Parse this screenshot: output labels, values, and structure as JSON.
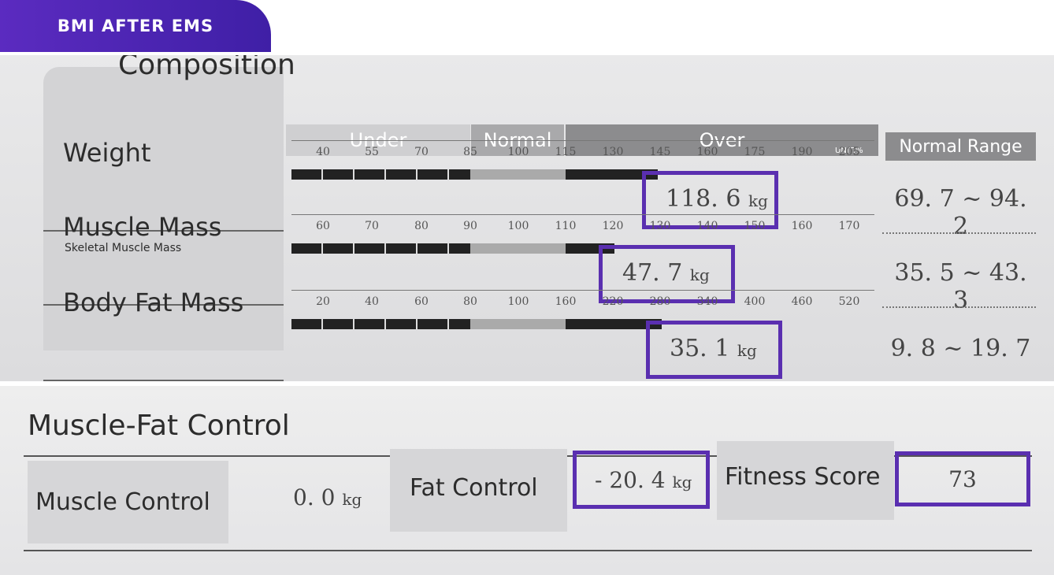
{
  "header": {
    "tab": "BMI AFTER EMS"
  },
  "body_composition": {
    "title": "Composition",
    "columns": {
      "under": "Under",
      "normal": "Normal",
      "over": "Over",
      "unit": "UNIT:%",
      "range": "Normal Range"
    },
    "rows": [
      {
        "label": "Weight",
        "scale": [
          "40",
          "55",
          "70",
          "85",
          "100",
          "115",
          "130",
          "145",
          "160",
          "175",
          "190",
          "205"
        ],
        "value": "118. 6",
        "unit": "kg",
        "range": "69. 7 ~ 94. 2"
      },
      {
        "label": "Muscle Mass",
        "sublabel": "Skeletal Muscle Mass",
        "scale": [
          "60",
          "70",
          "80",
          "90",
          "100",
          "110",
          "120",
          "130",
          "140",
          "150",
          "160",
          "170"
        ],
        "value": "47. 7",
        "unit": "kg",
        "range": "35. 5 ~ 43. 3"
      },
      {
        "label": "Body Fat Mass",
        "scale": [
          "20",
          "40",
          "60",
          "80",
          "100",
          "160",
          "220",
          "280",
          "340",
          "400",
          "460",
          "520"
        ],
        "value": "35. 1",
        "unit": "kg",
        "range": "9. 8 ~ 19. 7"
      }
    ]
  },
  "muscle_fat_control": {
    "title": "Muscle-Fat Control",
    "items": [
      {
        "label": "Muscle Control",
        "value": "0. 0",
        "unit": "kg"
      },
      {
        "label": "Fat Control",
        "value": "- 20. 4",
        "unit": "kg"
      },
      {
        "label": "Fitness Score",
        "value": "73"
      }
    ]
  }
}
